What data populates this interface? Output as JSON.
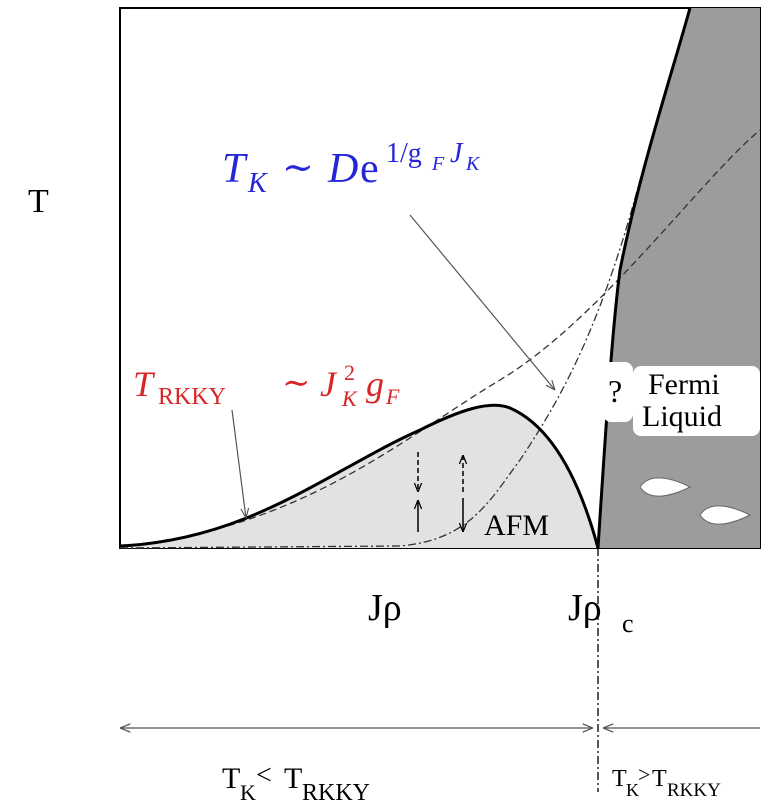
{
  "axis": {
    "y_label": "T",
    "x_label": "Jρ",
    "critical": {
      "base": "Jρ",
      "sub": "c"
    }
  },
  "formulas": {
    "kondo": {
      "T": "T",
      "T_sub": "K",
      "rel": "∼",
      "D": "D",
      "e": "e",
      "exp": "1/g",
      "exp_sub": "F",
      "exp2": "J",
      "exp2_sub": "K"
    },
    "rkky": {
      "T": "T",
      "T_sub": "RKKY",
      "rel": "∼",
      "J": "J",
      "J_sub": "K",
      "J_sup": "2",
      "g": "g",
      "g_sub": "F"
    }
  },
  "regions": {
    "afm": "AFM",
    "unknown": "?",
    "fermi_liquid": [
      "Fermi",
      "Liquid"
    ]
  },
  "regimes": [
    {
      "base": "T",
      "sub": "K",
      "rel": "<",
      "base2": "T",
      "sub2": "RKKY"
    },
    {
      "base": "T",
      "sub": "K",
      "rel": ">",
      "base2": "T",
      "sub2": "RKKY"
    }
  ]
}
